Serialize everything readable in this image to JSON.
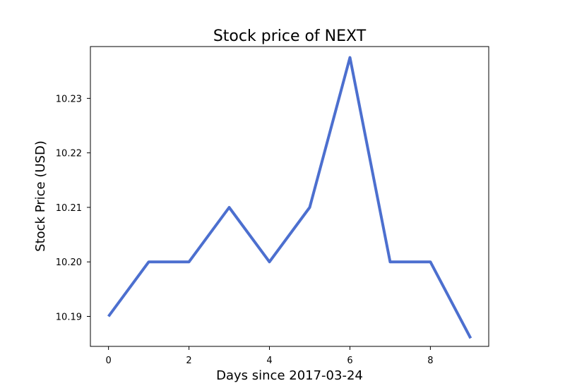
{
  "chart_data": {
    "type": "line",
    "title": "Stock price of NEXT",
    "xlabel": "Days since 2017-03-24",
    "ylabel": "Stock Price (USD)",
    "x": [
      0,
      1,
      2,
      3,
      4,
      5,
      6,
      7,
      8,
      9
    ],
    "series": [
      {
        "values": [
          10.19,
          10.2,
          10.2,
          10.21,
          10.2,
          10.21,
          10.2375,
          10.2,
          10.2,
          10.186
        ],
        "color": "#4C6FCF"
      }
    ],
    "xlim": [
      -0.45,
      9.45
    ],
    "ylim": [
      10.1845,
      10.2395
    ],
    "xticks": [
      0,
      2,
      4,
      6,
      8
    ],
    "xtick_labels": [
      "0",
      "2",
      "4",
      "6",
      "8"
    ],
    "yticks": [
      10.19,
      10.2,
      10.21,
      10.22,
      10.23
    ],
    "ytick_labels": [
      "10.19",
      "10.20",
      "10.21",
      "10.22",
      "10.23"
    ],
    "grid": false,
    "legend": "none"
  }
}
